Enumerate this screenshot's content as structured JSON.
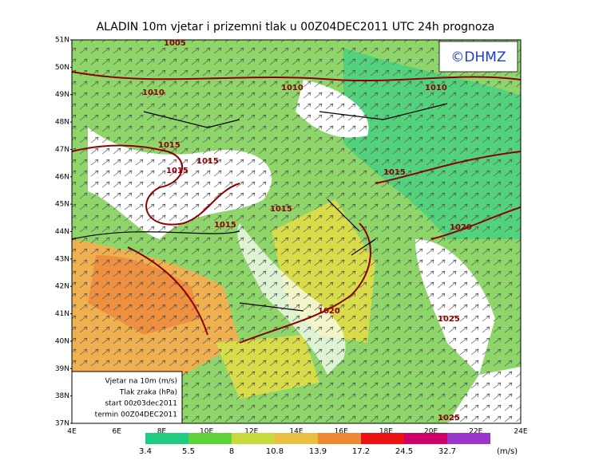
{
  "header": {
    "title": "ALADIN 10m vjetar i prizemni tlak u 00Z04DEC2011 UTC 24h prognoza",
    "logo": "©DHMZ"
  },
  "lat_labels": [
    "51N",
    "50N",
    "49N",
    "48N",
    "47N",
    "46N",
    "45N",
    "44N",
    "43N",
    "42N",
    "41N",
    "40N",
    "39N",
    "38N",
    "37N"
  ],
  "lon_labels": [
    "4E",
    "6E",
    "8E",
    "10E",
    "12E",
    "14E",
    "16E",
    "18E",
    "20E",
    "22E",
    "24E"
  ],
  "isobars": [
    "1005",
    "1010",
    "1010",
    "1010",
    "1015",
    "1015",
    "1015",
    "1015",
    "1015",
    "1020",
    "1020",
    "1025",
    "1025",
    "1015"
  ],
  "legend_box": [
    "Vjetar na 10m (m/s)",
    "Tlak zraka (hPa)",
    "start 00z03dec2011",
    "termin 00Z04DEC2011"
  ],
  "colorbar": {
    "labels": [
      "3.4",
      "5.5",
      "8",
      "10.8",
      "13.9",
      "17.2",
      "24.5",
      "32.7"
    ],
    "unit": "(m/s)"
  }
}
